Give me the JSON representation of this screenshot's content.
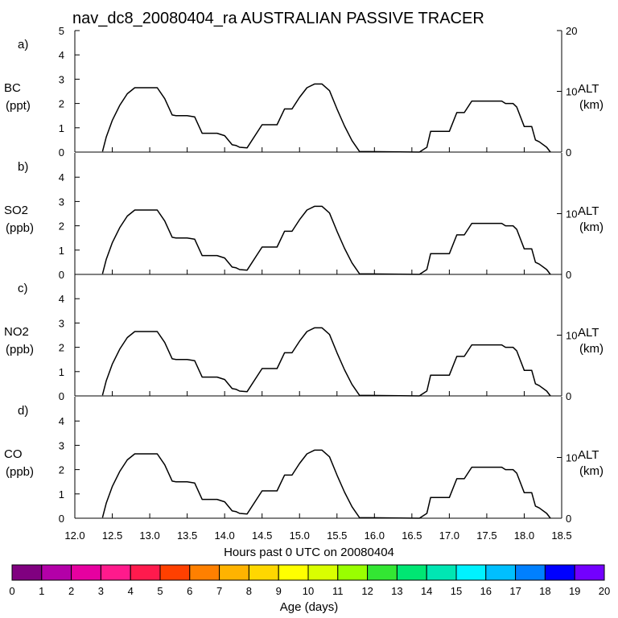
{
  "chart_data": {
    "type": "line",
    "title": "nav_dc8_20080404_ra AUSTRALIAN PASSIVE TRACER",
    "xlabel": "Hours past 0 UTC on 20080404",
    "xlim": [
      12.0,
      18.5
    ],
    "x_ticks": [
      "12.0",
      "12.5",
      "13.0",
      "13.5",
      "14.0",
      "14.5",
      "15.0",
      "15.5",
      "16.0",
      "16.5",
      "17.0",
      "17.5",
      "18.0",
      "18.5"
    ],
    "left_ylim": [
      0,
      5
    ],
    "left_ticks": [
      "0",
      "1",
      "2",
      "3",
      "4",
      "5"
    ],
    "right_axis": {
      "label": "ALT",
      "units": "(km)",
      "ylim": [
        0,
        20
      ],
      "ticks": [
        "0",
        "10",
        "20"
      ]
    },
    "panels": [
      {
        "tag": "a)",
        "species": "BC",
        "units": "(ppt)"
      },
      {
        "tag": "b)",
        "species": "SO2",
        "units": "(ppb)"
      },
      {
        "tag": "c)",
        "species": "NO2",
        "units": "(ppb)"
      },
      {
        "tag": "d)",
        "species": "CO",
        "units": "(ppb)"
      }
    ],
    "series": [
      {
        "name": "ALT",
        "axis": "right",
        "units": "km",
        "x": [
          12.37,
          12.42,
          12.5,
          12.6,
          12.7,
          12.8,
          12.9,
          13.1,
          13.2,
          13.3,
          13.35,
          13.5,
          13.6,
          13.7,
          13.9,
          14.0,
          14.1,
          14.15,
          14.2,
          14.3,
          14.5,
          14.55,
          14.6,
          14.7,
          14.8,
          14.9,
          15.0,
          15.1,
          15.2,
          15.3,
          15.4,
          15.5,
          15.6,
          15.7,
          15.8,
          16.6,
          16.7,
          16.75,
          16.8,
          17.0,
          17.1,
          17.2,
          17.3,
          17.35,
          17.5,
          17.7,
          17.75,
          17.85,
          17.9,
          18.0,
          18.1,
          18.15,
          18.2,
          18.3,
          18.35
        ],
        "values": [
          0.1,
          2.5,
          5.2,
          7.7,
          9.6,
          10.6,
          10.6,
          10.6,
          8.8,
          6.1,
          6.0,
          6.0,
          5.8,
          3.1,
          3.1,
          2.7,
          1.2,
          1.1,
          0.8,
          0.7,
          4.5,
          4.5,
          4.5,
          4.5,
          7.1,
          7.1,
          9.0,
          10.6,
          11.2,
          11.2,
          10.1,
          7.1,
          4.3,
          1.9,
          0.1,
          0.0,
          0.8,
          3.4,
          3.4,
          3.4,
          6.5,
          6.5,
          8.4,
          8.4,
          8.4,
          8.4,
          8.0,
          8.0,
          7.4,
          4.2,
          4.2,
          2.0,
          1.7,
          0.8,
          0.0
        ]
      }
    ],
    "colorbar": {
      "label": "Age (days)",
      "range": [
        0,
        20
      ],
      "ticks": [
        "0",
        "1",
        "2",
        "3",
        "4",
        "5",
        "6",
        "7",
        "8",
        "9",
        "10",
        "11",
        "12",
        "13",
        "14",
        "15",
        "16",
        "17",
        "18",
        "19",
        "20"
      ],
      "colors": [
        "#800080",
        "#b300a8",
        "#e600a0",
        "#ff1a8c",
        "#ff1a4d",
        "#ff4000",
        "#ff8000",
        "#ffb300",
        "#ffd700",
        "#ffff00",
        "#d9ff00",
        "#99ff00",
        "#33e633",
        "#00e673",
        "#00e6b3",
        "#00f2ff",
        "#00bfff",
        "#0080ff",
        "#0000ff",
        "#7300ff"
      ]
    }
  }
}
